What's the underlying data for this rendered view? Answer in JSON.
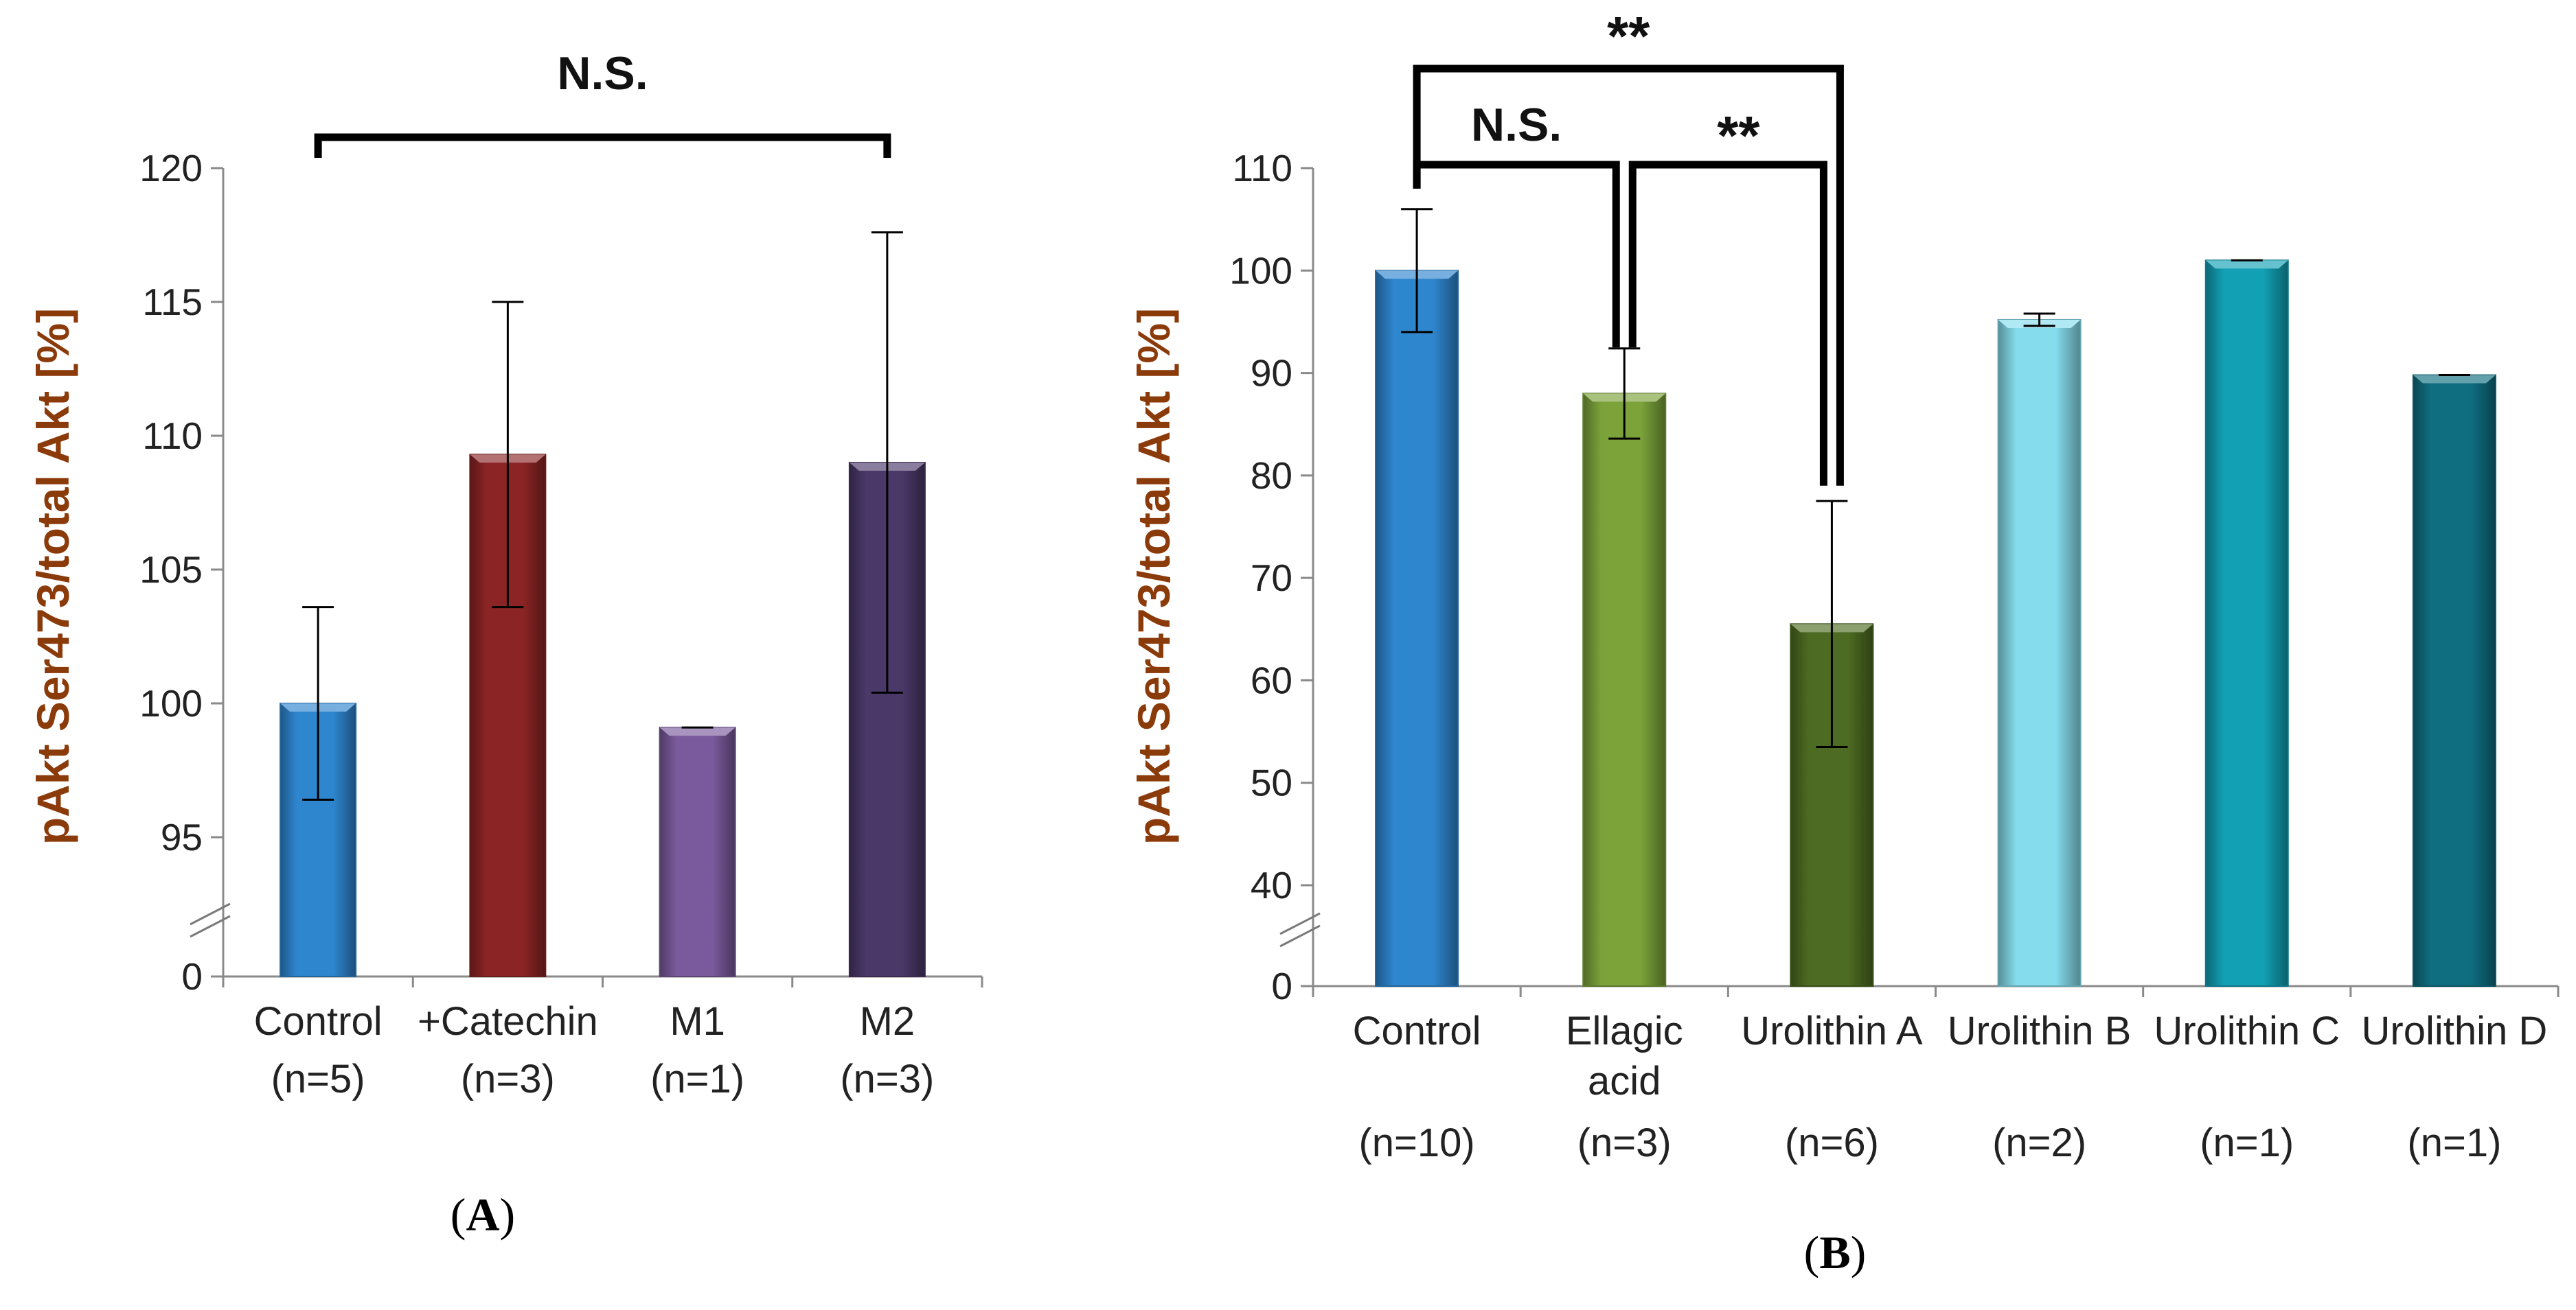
{
  "chart_data": [
    {
      "type": "bar",
      "panel": "(A)",
      "ylabel": "pAkt Ser473/total Akt [%]",
      "axis_break": true,
      "yticks": [
        0,
        95,
        100,
        105,
        110,
        115,
        120
      ],
      "ylim": [
        95,
        120
      ],
      "categories": [
        "Control",
        "+Catechin",
        "M1",
        "M2"
      ],
      "n_labels": [
        "(n=5)",
        "(n=3)",
        "(n=1)",
        "(n=3)"
      ],
      "values": [
        100,
        109.3,
        99.1,
        109.0
      ],
      "errors": [
        3.6,
        5.7,
        0.05,
        8.6
      ],
      "colors": [
        "#2e86cf",
        "#8b2424",
        "#7a5a9c",
        "#4a3868"
      ],
      "significance": [
        {
          "from": 0,
          "to": 3,
          "label": "N.S."
        }
      ]
    },
    {
      "type": "bar",
      "panel": "(B)",
      "ylabel": "pAkt Ser473/total Akt [%]",
      "axis_break": true,
      "yticks": [
        0,
        40,
        50,
        60,
        70,
        80,
        90,
        100,
        110
      ],
      "ylim": [
        40,
        110
      ],
      "categories": [
        [
          "Control"
        ],
        [
          "Ellagic",
          "acid"
        ],
        [
          "Urolithin A"
        ],
        [
          "Urolithin B"
        ],
        [
          "Urolithin C"
        ],
        [
          "Urolithin D"
        ]
      ],
      "n_labels": [
        "(n=10)",
        "(n=3)",
        "(n=6)",
        "(n=2)",
        "(n=1)",
        "(n=1)"
      ],
      "values": [
        100,
        88,
        65.5,
        95.2,
        101,
        89.8
      ],
      "errors": [
        6.0,
        4.4,
        12.0,
        0.6,
        0.05,
        0.05
      ],
      "colors": [
        "#2e86cf",
        "#7ba33a",
        "#4d6b22",
        "#85dcec",
        "#12a0b4",
        "#0f6e80"
      ],
      "significance": [
        {
          "from": 0,
          "to": 1,
          "label": "N.S."
        },
        {
          "from": 1,
          "to": 2,
          "label": "**"
        },
        {
          "from": 0,
          "to": 2,
          "label": "**"
        }
      ]
    }
  ]
}
